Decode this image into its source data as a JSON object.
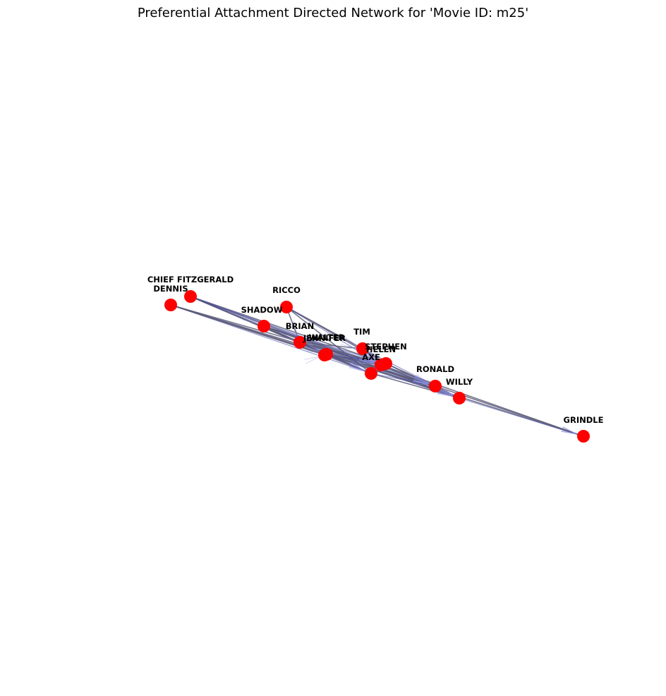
{
  "title": "Preferential Attachment Directed Network for 'Movie ID: m25'",
  "colors": {
    "node_fill": "#ff0000",
    "edge": "#5a5a78",
    "edge_highlight": "#4a4ea8"
  },
  "nodes": [
    {
      "id": "CHIEF FITZGERALD",
      "label": "CHIEF FITZGERALD"
    },
    {
      "id": "DENNIS",
      "label": "DENNIS"
    },
    {
      "id": "RICCO",
      "label": "RICCO"
    },
    {
      "id": "SHADOW",
      "label": "SHADOW"
    },
    {
      "id": "BRIAN",
      "label": "BRIAN"
    },
    {
      "id": "JENNIFER",
      "label": "JENNIFER"
    },
    {
      "id": "WALTER",
      "label": "WALTER"
    },
    {
      "id": "TIM",
      "label": "TIM"
    },
    {
      "id": "STEPHEN",
      "label": "STEPHEN"
    },
    {
      "id": "HELEN",
      "label": "HELEN"
    },
    {
      "id": "AXE",
      "label": "AXE"
    },
    {
      "id": "RONALD",
      "label": "RONALD"
    },
    {
      "id": "WILLY",
      "label": "WILLY"
    },
    {
      "id": "GRINDLE",
      "label": "GRINDLE"
    }
  ],
  "edges": [
    [
      "DENNIS",
      "RONALD"
    ],
    [
      "DENNIS",
      "WILLY"
    ],
    [
      "DENNIS",
      "GRINDLE"
    ],
    [
      "DENNIS",
      "HELEN"
    ],
    [
      "DENNIS",
      "AXE"
    ],
    [
      "DENNIS",
      "JENNIFER"
    ],
    [
      "CHIEF FITZGERALD",
      "WILLY"
    ],
    [
      "CHIEF FITZGERALD",
      "RONALD"
    ],
    [
      "CHIEF FITZGERALD",
      "STEPHEN"
    ],
    [
      "CHIEF FITZGERALD",
      "AXE"
    ],
    [
      "CHIEF FITZGERALD",
      "HELEN"
    ],
    [
      "CHIEF FITZGERALD",
      "BRIAN"
    ],
    [
      "CHIEF FITZGERALD",
      "WALTER"
    ],
    [
      "CHIEF FITZGERALD",
      "SHADOW"
    ],
    [
      "RICCO",
      "TIM"
    ],
    [
      "RICCO",
      "STEPHEN"
    ],
    [
      "RICCO",
      "HELEN"
    ],
    [
      "RICCO",
      "AXE"
    ],
    [
      "RICCO",
      "BRIAN"
    ],
    [
      "SHADOW",
      "STEPHEN"
    ],
    [
      "SHADOW",
      "HELEN"
    ],
    [
      "SHADOW",
      "AXE"
    ],
    [
      "SHADOW",
      "RONALD"
    ],
    [
      "SHADOW",
      "WILLY"
    ],
    [
      "BRIAN",
      "WALTER"
    ],
    [
      "BRIAN",
      "HELEN"
    ],
    [
      "BRIAN",
      "STEPHEN"
    ],
    [
      "BRIAN",
      "RONALD"
    ],
    [
      "BRIAN",
      "WILLY"
    ],
    [
      "BRIAN",
      "TIM"
    ],
    [
      "JENNIFER",
      "WALTER"
    ],
    [
      "JENNIFER",
      "HELEN"
    ],
    [
      "JENNIFER",
      "AXE"
    ],
    [
      "WALTER",
      "HELEN"
    ],
    [
      "WALTER",
      "STEPHEN"
    ],
    [
      "WALTER",
      "RONALD"
    ],
    [
      "WALTER",
      "WILLY"
    ],
    [
      "WALTER",
      "AXE"
    ],
    [
      "TIM",
      "HELEN"
    ],
    [
      "TIM",
      "STEPHEN"
    ],
    [
      "TIM",
      "RONALD"
    ],
    [
      "STEPHEN",
      "RONALD"
    ],
    [
      "STEPHEN",
      "WILLY"
    ],
    [
      "HELEN",
      "RONALD"
    ],
    [
      "HELEN",
      "WILLY"
    ],
    [
      "HELEN",
      "GRINDLE"
    ],
    [
      "AXE",
      "RONALD"
    ],
    [
      "AXE",
      "WILLY"
    ],
    [
      "RONALD",
      "WILLY"
    ],
    [
      "WILLY",
      "GRINDLE"
    ],
    [
      "RONALD",
      "GRINDLE"
    ]
  ]
}
